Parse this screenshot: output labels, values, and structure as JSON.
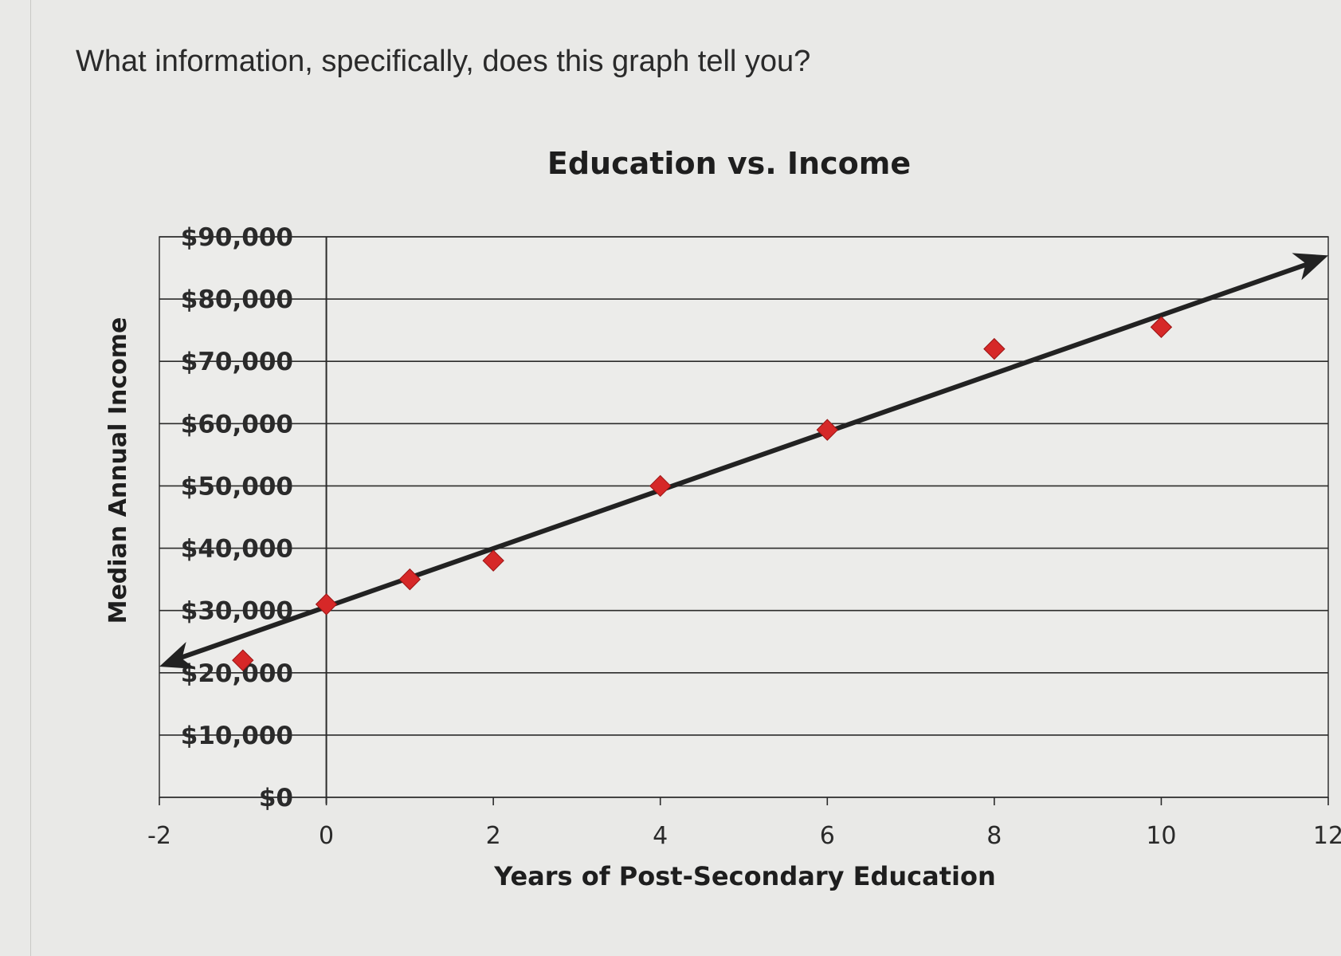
{
  "question": "What information, specifically, does this graph tell you?",
  "chart_data": {
    "type": "scatter",
    "title": "Education vs. Income",
    "xlabel": "Years of Post-Secondary Education",
    "ylabel": "Median Annual Income",
    "xlim": [
      -2,
      12
    ],
    "ylim": [
      0,
      90000
    ],
    "x_ticks": [
      "-2",
      "0",
      "2",
      "4",
      "6",
      "8",
      "10",
      "12"
    ],
    "y_ticks": [
      "$0",
      "$10,000",
      "$20,000",
      "$30,000",
      "$40,000",
      "$50,000",
      "$60,000",
      "$70,000",
      "$80,000",
      "$90,000"
    ],
    "grid": "horizontal",
    "series": [
      {
        "points": [
          {
            "x": -1,
            "y": 22000
          },
          {
            "x": 0,
            "y": 31000
          },
          {
            "x": 1,
            "y": 35000
          },
          {
            "x": 2,
            "y": 38000
          },
          {
            "x": 4,
            "y": 50000
          },
          {
            "x": 6,
            "y": 59000
          },
          {
            "x": 8,
            "y": 72000
          },
          {
            "x": 10,
            "y": 75500
          }
        ],
        "marker": "diamond",
        "color": "#d62828"
      }
    ],
    "trend_line": {
      "start": {
        "x": -2,
        "y": 21000
      },
      "end": {
        "x": 12,
        "y": 87000
      },
      "arrows": "both",
      "color": "#222222"
    }
  }
}
